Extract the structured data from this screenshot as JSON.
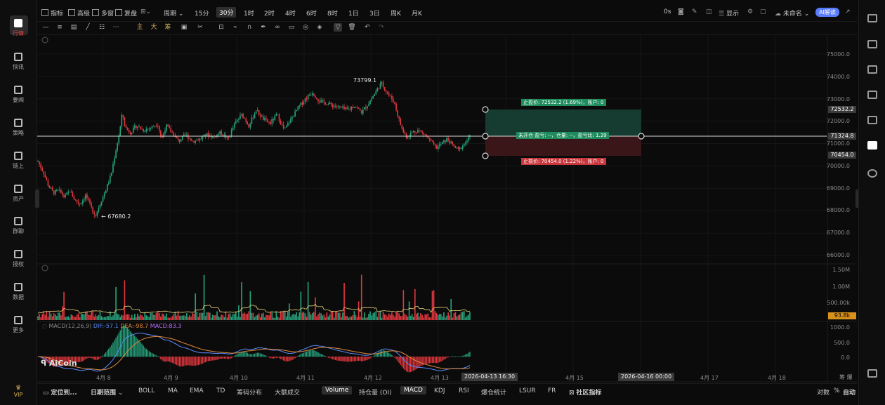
{
  "left_nav": {
    "items": [
      {
        "label": "行情",
        "active": true
      },
      {
        "label": "快讯"
      },
      {
        "label": "要闻"
      },
      {
        "label": "策略"
      },
      {
        "label": "链上"
      },
      {
        "label": "资产"
      },
      {
        "label": "群聊"
      },
      {
        "label": "授权"
      },
      {
        "label": "数据"
      },
      {
        "label": "更多"
      },
      {
        "label": "VIP"
      }
    ]
  },
  "toolbar": {
    "indicators": "指标",
    "advanced": "高级",
    "multi": "多窗",
    "replay": "复盘",
    "period": "周期",
    "intervals": [
      "15分",
      "30分",
      "1时",
      "2时",
      "4时",
      "6时",
      "8时",
      "1日",
      "3日",
      "周K",
      "月K"
    ],
    "active_interval": "30分",
    "countdown": "0s",
    "display": "显示",
    "unnamed": "未命名",
    "ai": "AI解读"
  },
  "drawing_toolbar": {
    "labels": [
      "主",
      "大",
      "筹"
    ]
  },
  "chart": {
    "y_axis": [
      "75000.0",
      "74000.0",
      "73000.0",
      "72000.0",
      "71000.0",
      "70000.0",
      "69000.0",
      "68000.0",
      "67000.0",
      "66000.0"
    ],
    "price_tags": {
      "take_profit": "72532.2",
      "current": "71324.8",
      "stop_loss": "70454.0"
    },
    "high_label": "73799.1",
    "low_label": "← 67680.2",
    "position": {
      "take_profit_text": "止盈价: 72532.2 (1.69%)，账户: 0",
      "middle_text": "未开仓 盈亏: --，仓量: --，盈亏比: 1.39",
      "stop_loss_text": "止损价: 70454.0 (1.22%)，账户: 0"
    },
    "volume_axis": [
      "1.50M",
      "1.00M",
      "500.00k"
    ],
    "volume_tag": "93.8k",
    "macd_axis": [
      "1000.0",
      "500.0",
      "0.0"
    ],
    "macd_title": "MACD(12,26,9)",
    "macd_values": {
      "dif": "DIF:-57.1",
      "dea": "DEA:-98.7",
      "macd": "MACD:83.3"
    },
    "watermark": "AiCoin",
    "x_labels": [
      "4月 8",
      "4月 9",
      "4月 10",
      "4月 11",
      "4月 12",
      "4月 13",
      "4",
      "4月 15",
      "4月 17",
      "4月 18"
    ],
    "x_tags": [
      "2026-04-13 16:30",
      "2026-04-16 00:00"
    ],
    "colors": {
      "up": "#26a17b",
      "down": "#e0373d",
      "tp_fill": "#153a30",
      "sl_fill": "#3a1517"
    }
  },
  "chart_data": {
    "type": "candlestick",
    "title": "",
    "ylim": [
      65500,
      75500
    ],
    "high": 73799.1,
    "low": 67680.2,
    "take_profit": 72532.2,
    "entry": 71324.8,
    "stop_loss": 70454.0,
    "path": [
      [
        0,
        70200
      ],
      [
        8,
        69700
      ],
      [
        15,
        69100
      ],
      [
        22,
        68800
      ],
      [
        30,
        68900
      ],
      [
        38,
        68600
      ],
      [
        45,
        68900
      ],
      [
        52,
        68500
      ],
      [
        60,
        68300
      ],
      [
        68,
        68700
      ],
      [
        76,
        68100
      ],
      [
        82,
        67800
      ],
      [
        88,
        68300
      ],
      [
        96,
        68900
      ],
      [
        104,
        69600
      ],
      [
        110,
        70600
      ],
      [
        116,
        71500
      ],
      [
        120,
        72400
      ],
      [
        124,
        71700
      ],
      [
        132,
        71500
      ],
      [
        140,
        71800
      ],
      [
        150,
        71600
      ],
      [
        160,
        71700
      ],
      [
        170,
        71900
      ],
      [
        176,
        71200
      ],
      [
        182,
        71800
      ],
      [
        190,
        71500
      ],
      [
        200,
        71100
      ],
      [
        210,
        71400
      ],
      [
        220,
        71100
      ],
      [
        230,
        71200
      ],
      [
        240,
        71400
      ],
      [
        250,
        71300
      ],
      [
        260,
        71500
      ],
      [
        270,
        71200
      ],
      [
        280,
        71900
      ],
      [
        290,
        72300
      ],
      [
        300,
        71800
      ],
      [
        310,
        72500
      ],
      [
        320,
        72100
      ],
      [
        330,
        71900
      ],
      [
        340,
        72300
      ],
      [
        350,
        71600
      ],
      [
        360,
        72100
      ],
      [
        370,
        72600
      ],
      [
        380,
        73000
      ],
      [
        390,
        73300
      ],
      [
        400,
        72900
      ],
      [
        410,
        72800
      ],
      [
        420,
        72700
      ],
      [
        430,
        72600
      ],
      [
        440,
        72500
      ],
      [
        450,
        72700
      ],
      [
        460,
        72400
      ],
      [
        470,
        72800
      ],
      [
        480,
        73300
      ],
      [
        488,
        73700
      ],
      [
        494,
        73400
      ],
      [
        500,
        73100
      ],
      [
        506,
        72900
      ],
      [
        512,
        72200
      ],
      [
        518,
        71600
      ],
      [
        524,
        71300
      ],
      [
        532,
        71500
      ],
      [
        540,
        71600
      ],
      [
        550,
        71400
      ],
      [
        558,
        71100
      ],
      [
        566,
        70800
      ],
      [
        574,
        71000
      ],
      [
        582,
        71200
      ],
      [
        590,
        70900
      ],
      [
        598,
        70700
      ],
      [
        606,
        71000
      ],
      [
        614,
        71300
      ]
    ]
  }
}
